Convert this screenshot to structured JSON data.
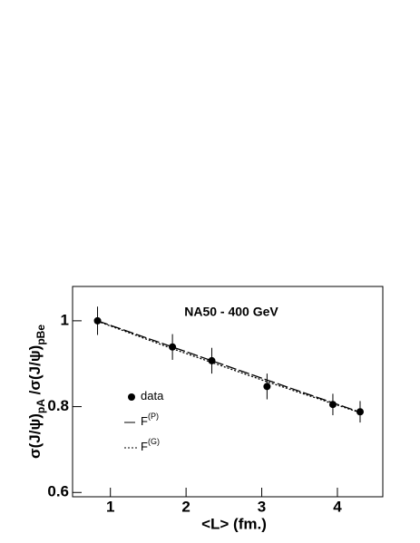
{
  "chart_data": {
    "type": "scatter",
    "title": "NA50 - 400 GeV",
    "x_label": "<L> (fm.)",
    "y_label": [
      "σ(J/ψ)",
      "pA",
      " /σ(J/ψ)",
      "pBe"
    ],
    "xlim": [
      0.5,
      4.6
    ],
    "ylim": [
      0.59,
      1.08
    ],
    "xticks": [
      1,
      2,
      3,
      4
    ],
    "yticks": [
      0.6,
      0.8,
      1
    ],
    "series": [
      {
        "name": "data",
        "kind": "points",
        "color": "#000000",
        "x": [
          0.83,
          1.82,
          2.34,
          3.07,
          3.94,
          4.3
        ],
        "values": [
          1.0,
          0.939,
          0.907,
          0.847,
          0.805,
          0.788
        ],
        "errors": [
          0.033,
          0.03,
          0.03,
          0.03,
          0.025,
          0.025
        ]
      },
      {
        "name": "F",
        "name_sup": "(P)",
        "kind": "dashed",
        "color": "#000000",
        "x": [
          0.83,
          1.82,
          2.34,
          3.07,
          3.94,
          4.3
        ],
        "values": [
          1.0,
          0.939,
          0.907,
          0.862,
          0.809,
          0.787
        ]
      },
      {
        "name": "F",
        "name_sup": "(G)",
        "kind": "dotted",
        "color": "#000000",
        "x": [
          0.83,
          1.82,
          2.34,
          3.07,
          3.94,
          4.3
        ],
        "values": [
          0.999,
          0.935,
          0.903,
          0.858,
          0.807,
          0.786
        ]
      }
    ]
  }
}
